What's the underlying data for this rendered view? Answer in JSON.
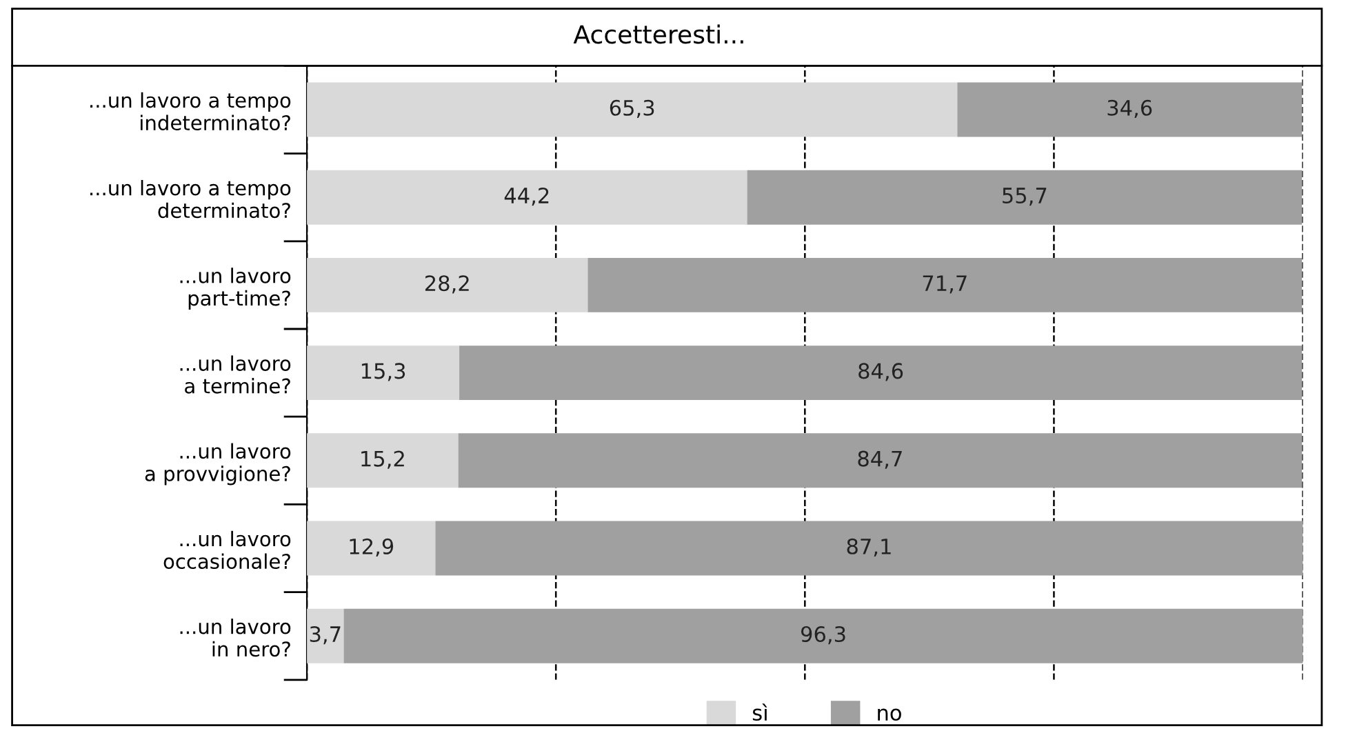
{
  "chart_data": {
    "type": "bar",
    "orientation": "horizontal",
    "stacked": true,
    "title": "Accetteresti...",
    "categories": [
      "...un lavoro a tempo\nindeterminato?",
      "...un lavoro a tempo\ndeterminato?",
      "...un lavoro\npart-time?",
      "...un lavoro\na termine?",
      "...un lavoro\na provvigione?",
      "...un lavoro\noccasionale?",
      "...un lavoro\nin nero?"
    ],
    "series": [
      {
        "name": "sì",
        "color": "#d9d9d9",
        "values": [
          65.3,
          44.2,
          28.2,
          15.3,
          15.2,
          12.9,
          3.7
        ],
        "value_labels": [
          "65,3",
          "44,2",
          "28,2",
          "15,3",
          "15,2",
          "12,9",
          "3,7"
        ]
      },
      {
        "name": "no",
        "color": "#a0a0a0",
        "values": [
          34.6,
          55.7,
          71.7,
          84.6,
          84.7,
          87.1,
          96.3
        ],
        "value_labels": [
          "34,6",
          "55,7",
          "71,7",
          "84,6",
          "84,7",
          "87,1",
          "96,3"
        ]
      }
    ],
    "grid": "x",
    "line_style": "dashed",
    "legend": "bottom",
    "tick_labels": "y"
  }
}
